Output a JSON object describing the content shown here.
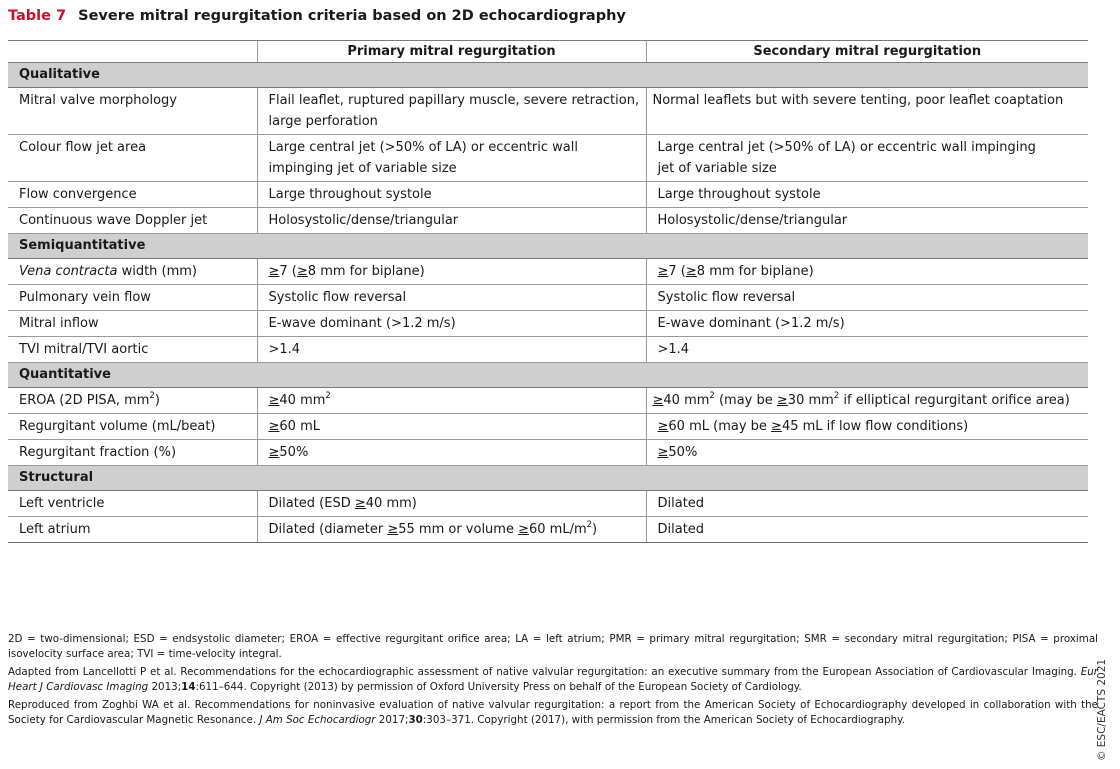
{
  "title": {
    "number": "Table 7",
    "text": "Severe mitral regurgitation criteria based on 2D echocardiography"
  },
  "header": {
    "blank": "",
    "primary": "Primary mitral regurgitation",
    "secondary": "Secondary mitral regurgitation"
  },
  "sections": {
    "qualitative": {
      "label": "Qualitative",
      "rows": [
        {
          "label": "Mitral valve morphology",
          "primary": "Flail leaflet, ruptured papillary muscle, severe retraction, large perforation",
          "secondary": "Normal leaflets but with severe tenting, poor leaflet coaptation"
        },
        {
          "label": "Colour flow jet area",
          "primary": "Large central jet (>50% of LA) or eccentric wall impinging jet of variable size",
          "secondary": "Large central jet (>50% of LA) or eccentric wall impinging jet of variable size"
        },
        {
          "label": "Flow convergence",
          "primary": "Large throughout systole",
          "secondary": "Large throughout systole"
        },
        {
          "label": "Continuous wave Doppler jet",
          "primary": "Holosystolic/dense/triangular",
          "secondary": "Holosystolic/dense/triangular"
        }
      ]
    },
    "semiquantitative": {
      "label": "Semiquantitative",
      "rows": [
        {
          "label_italic": "Vena contracta",
          "label_rest": " width (mm)",
          "primary_parts": [
            "≥",
            "7 (",
            "≥",
            "8 mm for biplane)"
          ],
          "secondary_parts": [
            "≥",
            "7 (",
            "≥",
            "8 mm for biplane)"
          ]
        },
        {
          "label": "Pulmonary vein flow",
          "primary": "Systolic flow reversal",
          "secondary": "Systolic flow reversal"
        },
        {
          "label": "Mitral inflow",
          "primary": "E-wave dominant (>1.2 m/s)",
          "secondary": "E-wave dominant (>1.2 m/s)"
        },
        {
          "label": "TVI mitral/TVI aortic",
          "primary": ">1.4",
          "secondary": ">1.4"
        }
      ]
    },
    "quantitative": {
      "label": "Quantitative",
      "rows": [
        {
          "label_a": "EROA (2D PISA, mm",
          "label_sup": "2",
          "label_b": ")",
          "primary_parts": [
            "≥",
            "40 mm",
            "2"
          ],
          "secondary_parts": [
            "≥",
            "40 mm",
            "2",
            " (may be ",
            "≥",
            "30 mm",
            "2",
            " if elliptical regurgitant orifice area)"
          ]
        },
        {
          "label": "Regurgitant volume (mL/beat)",
          "primary_parts": [
            "≥",
            "60 mL"
          ],
          "secondary_parts": [
            "≥",
            "60 mL (may be ",
            "≥",
            "45 mL if low flow conditions)"
          ]
        },
        {
          "label": "Regurgitant fraction (%)",
          "primary_parts": [
            "≥",
            "50%"
          ],
          "secondary_parts": [
            "≥",
            "50%"
          ]
        }
      ]
    },
    "structural": {
      "label": "Structural",
      "rows": [
        {
          "label": "Left ventricle",
          "primary_parts": [
            "Dilated (ESD ",
            "≥",
            "40 mm)"
          ],
          "secondary": "Dilated"
        },
        {
          "label": "Left atrium",
          "primary_parts": [
            "Dilated (diameter ",
            "≥",
            "55 mm or volume ",
            "≥",
            "60 mL/m",
            "2",
            ")"
          ],
          "secondary": "Dilated"
        }
      ]
    }
  },
  "copyright": "© ESC/EACTS 2021",
  "notes": {
    "abbreviations": "2D = two-dimensional; ESD = endsystolic diameter; EROA = effective regurgitant orifice area; LA = left atrium; PMR = primary mitral regurgitation; SMR = secondary mitral regurgitation; PISA = proximal isovelocity surface area; TVI = time-velocity integral.",
    "source1": {
      "pre": "Adapted from Lancellotti P et al. Recommendations for the echocardiographic assessment of native valvular regurgitation: an executive summary from the European Association of Cardiovascular Imaging. ",
      "journal": "Eur Heart J Cardiovasc Imaging",
      "year": " 2013;",
      "volume": "14",
      "post": ":611–644. Copyright (2013) by permission of Oxford University Press on behalf of the European Society of Cardiology."
    },
    "source2": {
      "pre": "Reproduced from Zoghbi WA et al. Recommendations for noninvasive evaluation of native valvular regurgitation: a report from the American Society of Echocardiography developed in collaboration with the Society for Cardiovascular Magnetic Resonance. ",
      "journal": "J Am Soc Echocardiogr",
      "year": " 2017;",
      "volume": "30",
      "post": ":303–371. Copyright (2017), with permission from the American Society of Echocardiography."
    }
  }
}
